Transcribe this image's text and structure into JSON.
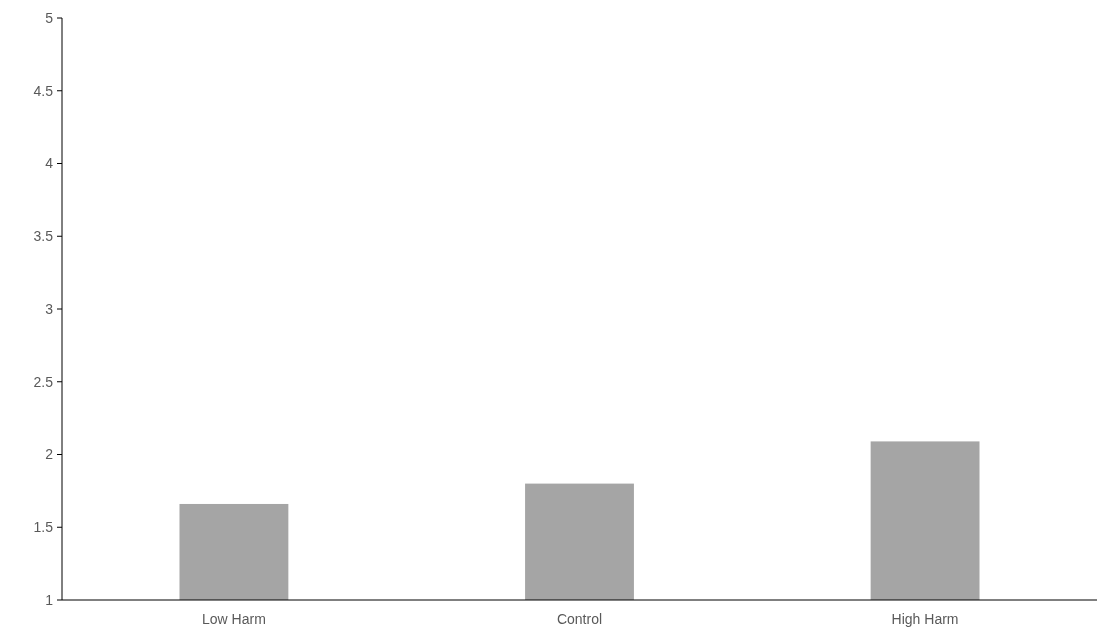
{
  "chart_data": {
    "type": "bar",
    "categories": [
      "Low Harm",
      "Control",
      "High Harm"
    ],
    "values": [
      1.66,
      1.8,
      2.09
    ],
    "color": "#a5a5a5",
    "ylim": [
      1,
      5
    ],
    "yticks": [
      1,
      1.5,
      2,
      2.5,
      3,
      3.5,
      4,
      4.5,
      5
    ],
    "grid": false
  }
}
